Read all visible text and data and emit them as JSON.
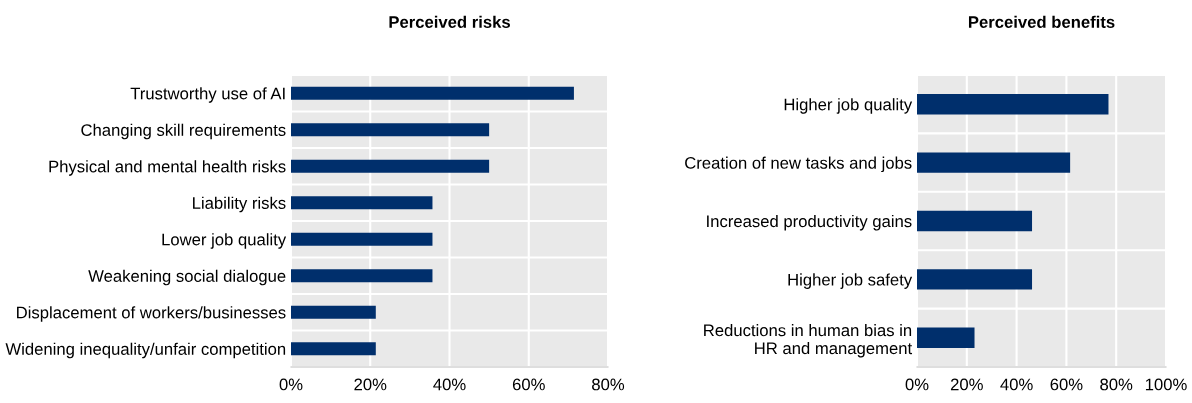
{
  "chart_data": [
    {
      "type": "bar",
      "orientation": "horizontal",
      "title": "Perceived risks",
      "categories": [
        "Trustworthy use of AI",
        "Changing skill requirements",
        "Physical and mental health risks",
        "Liability risks",
        "Lower job quality",
        "Weakening social dialogue",
        "Displacement of workers/businesses",
        "Widening inequality/unfair competition"
      ],
      "values": [
        71.4,
        50,
        50,
        35.7,
        35.7,
        35.7,
        21.4,
        21.4
      ],
      "color": "#002f6c",
      "xlim": [
        0,
        80
      ],
      "xticks": [
        {
          "value": 0,
          "label": "0%"
        },
        {
          "value": 20,
          "label": "20%"
        },
        {
          "value": 40,
          "label": "40%"
        },
        {
          "value": 60,
          "label": "60%"
        },
        {
          "value": 80,
          "label": "80%"
        }
      ],
      "grid": true
    },
    {
      "type": "bar",
      "orientation": "horizontal",
      "title": "Perceived benefits",
      "categories": [
        "Higher job quality",
        "Creation of new tasks and jobs",
        "Increased productivity gains",
        "Higher job safety",
        "Reductions in human bias in\nHR and management"
      ],
      "values": [
        76.9,
        61.5,
        46.2,
        46.2,
        23.1
      ],
      "color": "#002f6c",
      "xlim": [
        0,
        100
      ],
      "xticks": [
        {
          "value": 0,
          "label": "0%"
        },
        {
          "value": 20,
          "label": "20%"
        },
        {
          "value": 40,
          "label": "40%"
        },
        {
          "value": 60,
          "label": "60%"
        },
        {
          "value": 80,
          "label": "80%"
        },
        {
          "value": 100,
          "label": "100%"
        }
      ],
      "grid": true
    }
  ]
}
